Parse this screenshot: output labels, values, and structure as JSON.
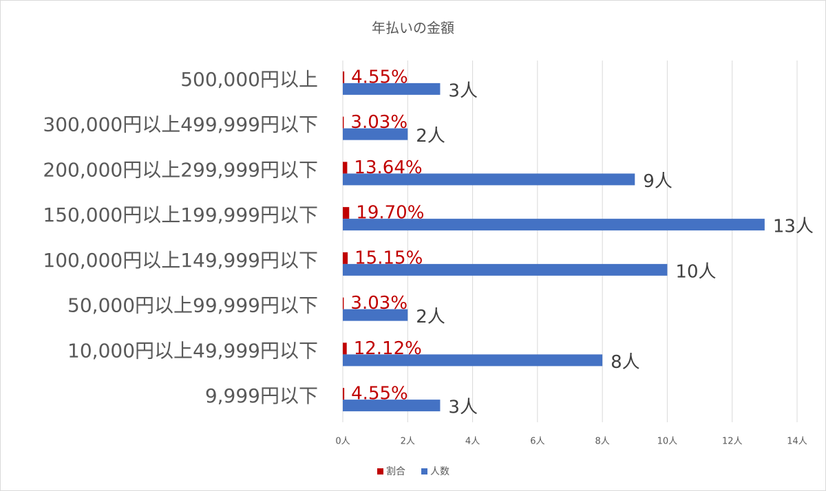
{
  "chart_data": {
    "type": "hbar",
    "title": "年払いの金額",
    "categories": [
      "500,000円以上",
      "300,000円以上499,999円以下",
      "200,000円以上299,999円以下",
      "150,000円以上199,999円以下",
      "100,000円以上149,999円以下",
      "50,000円以上99,999円以下",
      "10,000円以上49,999円以下",
      "9,999円以下"
    ],
    "series": [
      {
        "name": "割合",
        "color": "#c00000",
        "values": [
          0.0455,
          0.0303,
          0.1364,
          0.197,
          0.1515,
          0.0303,
          0.1212,
          0.0455
        ],
        "value_labels": [
          "4.55%",
          "3.03%",
          "13.64%",
          "19.70%",
          "15.15%",
          "3.03%",
          "12.12%",
          "4.55%"
        ]
      },
      {
        "name": "人数",
        "color": "#4472c4",
        "values": [
          3,
          2,
          9,
          13,
          10,
          2,
          8,
          3
        ],
        "value_labels": [
          "3人",
          "2人",
          "9人",
          "13人",
          "10人",
          "2人",
          "8人",
          "3人"
        ]
      }
    ],
    "xlim": [
      0,
      14
    ],
    "xticks": [
      {
        "value": 0,
        "label": "0人"
      },
      {
        "value": 2,
        "label": "2人"
      },
      {
        "value": 4,
        "label": "4人"
      },
      {
        "value": 6,
        "label": "6人"
      },
      {
        "value": 8,
        "label": "8人"
      },
      {
        "value": 10,
        "label": "10人"
      },
      {
        "value": 12,
        "label": "12人"
      },
      {
        "value": 14,
        "label": "14人"
      }
    ],
    "grid": true,
    "legend": "bottom"
  }
}
